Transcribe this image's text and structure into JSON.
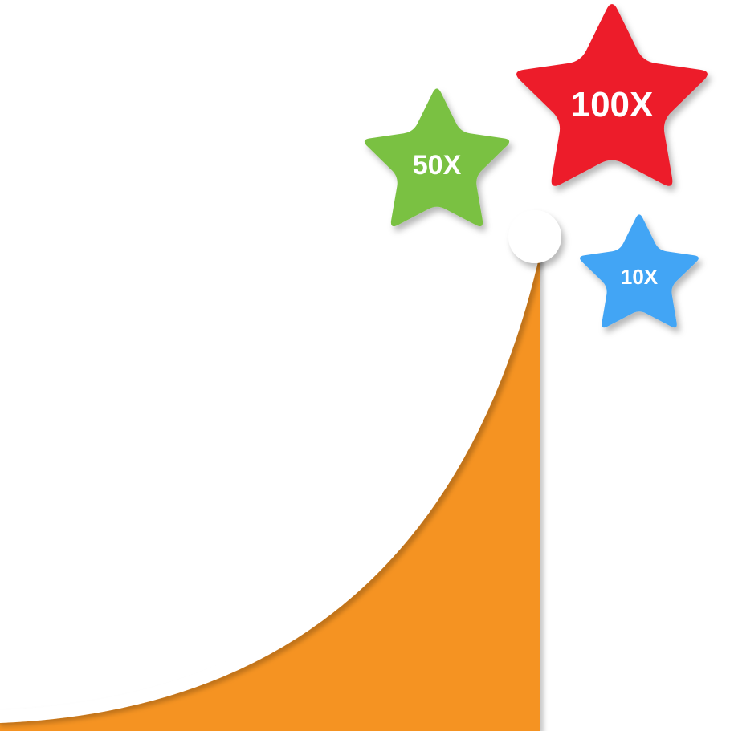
{
  "colors": {
    "background": "#ffffff",
    "curve_fill": "#f59322",
    "curve_stroke": "#ffffff",
    "shadow": "#000000"
  },
  "stars": [
    {
      "id": "star-10x",
      "label": "10X",
      "color": "#42a5f5",
      "icon": "star-icon"
    },
    {
      "id": "star-50x",
      "label": "50X",
      "color": "#7ac143",
      "icon": "star-icon"
    },
    {
      "id": "star-100x",
      "label": "100X",
      "color": "#ed1c29",
      "icon": "star-icon"
    }
  ]
}
